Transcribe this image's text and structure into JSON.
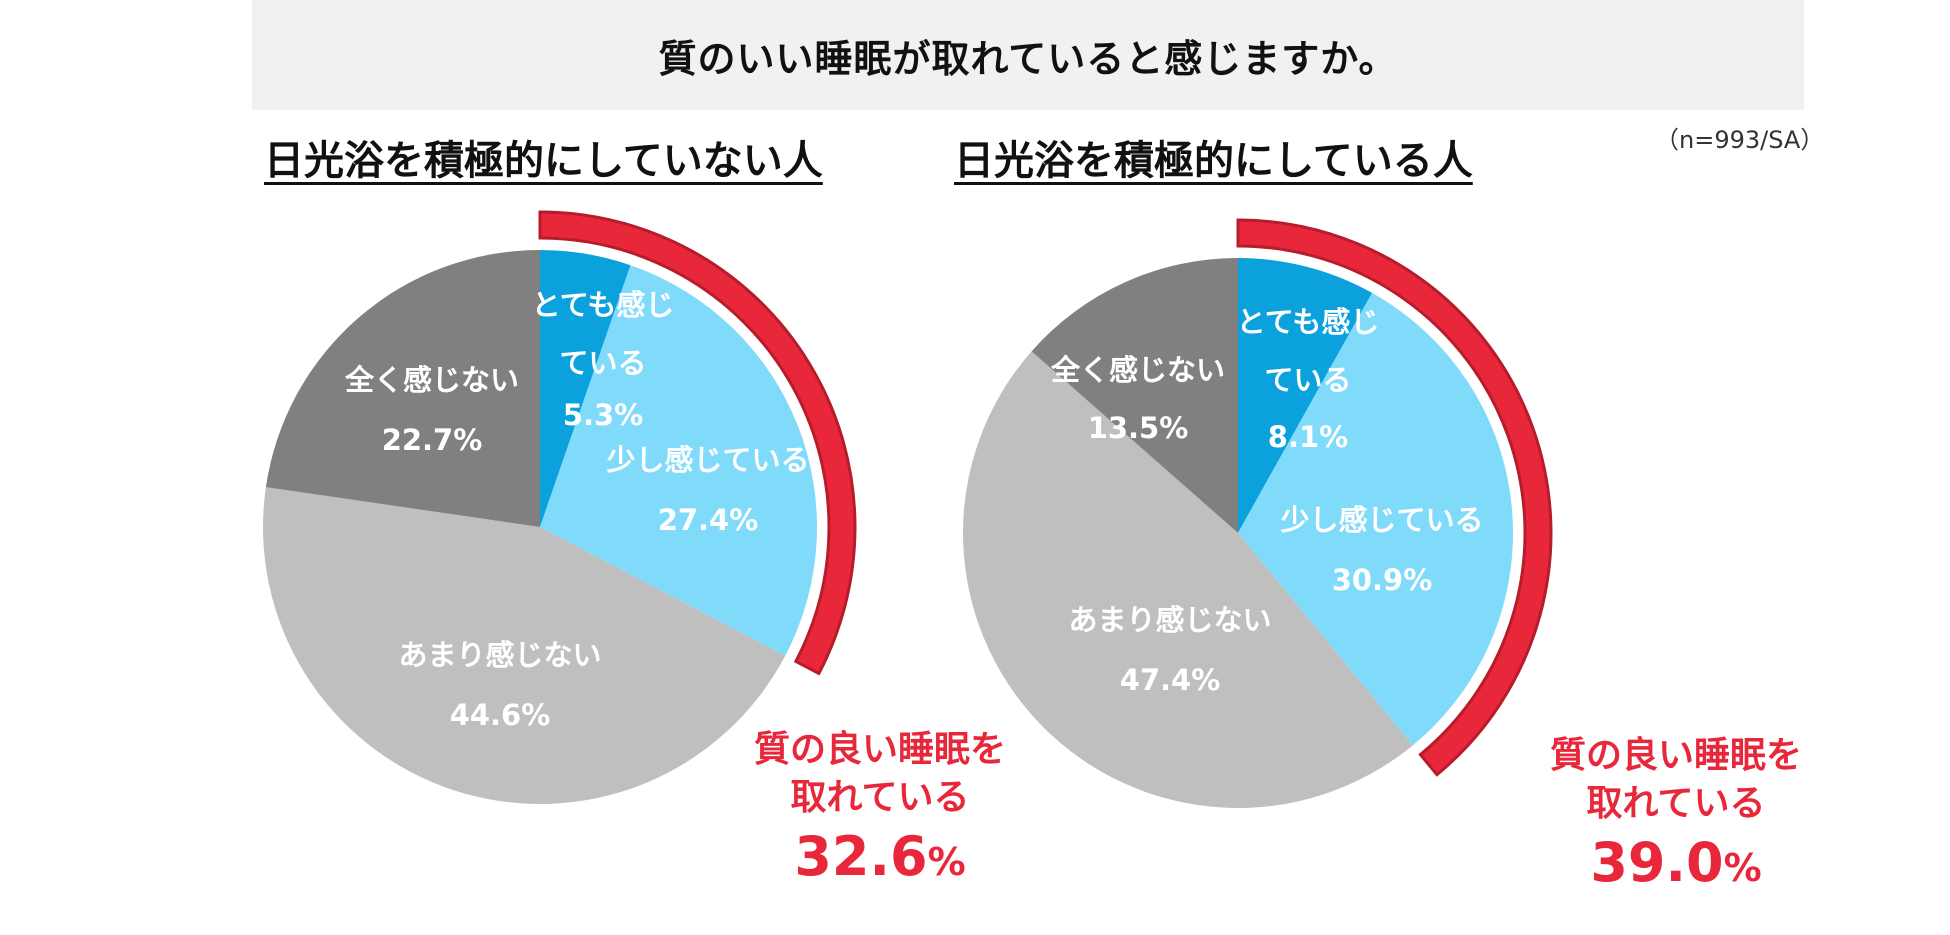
{
  "title": "質のいい睡眠が取れていると感じますか。",
  "sample_note": "（n=993/SA）",
  "colors": {
    "very": "#0aa1dd",
    "some": "#80dbfb",
    "little": "#bfbfbf",
    "none": "#808080",
    "highlight": "#e8283a"
  },
  "chart_data": [
    {
      "type": "pie",
      "title": "日光浴を積極的にしていない人",
      "series": [
        {
          "label_lines": [
            "とても感じ",
            "ている"
          ],
          "value": 5.3,
          "value_label": "5.3%",
          "color_key": "very"
        },
        {
          "label_lines": [
            "少し感じている"
          ],
          "value": 27.4,
          "value_label": "27.4%",
          "color_key": "some"
        },
        {
          "label_lines": [
            "あまり感じない"
          ],
          "value": 44.6,
          "value_label": "44.6%",
          "color_key": "little"
        },
        {
          "label_lines": [
            "全く感じない"
          ],
          "value": 22.7,
          "value_label": "22.7%",
          "color_key": "none"
        }
      ],
      "highlight": {
        "line1": "質の良い睡眠を",
        "line2": "取れている",
        "value": "32.6",
        "unit": "%"
      }
    },
    {
      "type": "pie",
      "title": "日光浴を積極的にしている人",
      "series": [
        {
          "label_lines": [
            "とても感じ",
            "ている"
          ],
          "value": 8.1,
          "value_label": "8.1%",
          "color_key": "very"
        },
        {
          "label_lines": [
            "少し感じている"
          ],
          "value": 30.9,
          "value_label": "30.9%",
          "color_key": "some"
        },
        {
          "label_lines": [
            "あまり感じない"
          ],
          "value": 47.4,
          "value_label": "47.4%",
          "color_key": "little"
        },
        {
          "label_lines": [
            "全く感じない"
          ],
          "value": 13.5,
          "value_label": "13.5%",
          "color_key": "none"
        }
      ],
      "highlight": {
        "line1": "質の良い睡眠を",
        "line2": "取れている",
        "value": "39.0",
        "unit": "%"
      }
    }
  ]
}
